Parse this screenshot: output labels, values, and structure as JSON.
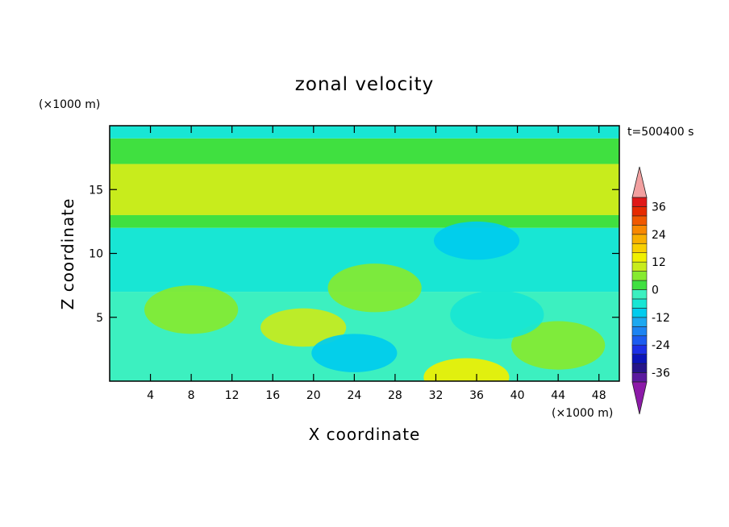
{
  "chart_data": {
    "type": "heatmap",
    "title": "zonal velocity",
    "xlabel": "X coordinate",
    "ylabel": "Z coordinate",
    "x_unit": "(×1000 m)",
    "y_unit": "(×1000 m)",
    "time_label": "t=500400 s",
    "xlim": [
      0,
      50
    ],
    "ylim": [
      0,
      20
    ],
    "x_ticks": [
      "4",
      "8",
      "12",
      "16",
      "20",
      "24",
      "28",
      "32",
      "36",
      "40",
      "44",
      "48"
    ],
    "x_tick_values": [
      4,
      8,
      12,
      16,
      20,
      24,
      28,
      32,
      36,
      40,
      44,
      48
    ],
    "y_ticks": [
      "5",
      "10",
      "15"
    ],
    "y_tick_values": [
      5,
      10,
      15
    ],
    "colorbar": {
      "labels": [
        "36",
        "24",
        "12",
        "0",
        "-12",
        "-24",
        "-36"
      ],
      "label_values": [
        36,
        24,
        12,
        0,
        -12,
        -24,
        -36
      ],
      "levels": [
        -40,
        -36,
        -32,
        -28,
        -24,
        -20,
        -16,
        -12,
        -8,
        -4,
        0,
        4,
        8,
        12,
        16,
        20,
        24,
        28,
        32,
        36,
        40
      ],
      "colors": [
        "#5a1a9e",
        "#26148a",
        "#0c14b8",
        "#1c30e6",
        "#1c5cf0",
        "#1c84f2",
        "#1ca8f0",
        "#00ccee",
        "#18e6d4",
        "#3cf0c0",
        "#40e040",
        "#86ea30",
        "#c8ec1c",
        "#f0f000",
        "#f8d000",
        "#f8b000",
        "#f88800",
        "#f05800",
        "#e62a00",
        "#e01818"
      ],
      "under_color": "#8c1aa8",
      "over_color": "#f2a0a0"
    },
    "bands": [
      {
        "z_range": [
          19,
          20
        ],
        "value": -6
      },
      {
        "z_range": [
          17,
          19
        ],
        "value": 2
      },
      {
        "z_range": [
          13,
          17
        ],
        "value": 9
      },
      {
        "z_range": [
          12,
          13
        ],
        "value": 2
      },
      {
        "z_range": [
          7,
          12
        ],
        "value": -6
      },
      {
        "z_range": [
          0,
          7
        ],
        "value": -2
      }
    ],
    "features": [
      {
        "x": 8,
        "z": 5.6,
        "value": 6
      },
      {
        "x": 19,
        "z": 4.2,
        "value": 10
      },
      {
        "x": 26,
        "z": 7.3,
        "value": 5
      },
      {
        "x": 35,
        "z": 0.3,
        "value": 13
      },
      {
        "x": 44,
        "z": 2.8,
        "value": 6
      },
      {
        "x": 24,
        "z": 2.2,
        "value": -9
      },
      {
        "x": 38,
        "z": 5.2,
        "value": -7
      },
      {
        "x": 36,
        "z": 11,
        "value": -9
      }
    ]
  }
}
